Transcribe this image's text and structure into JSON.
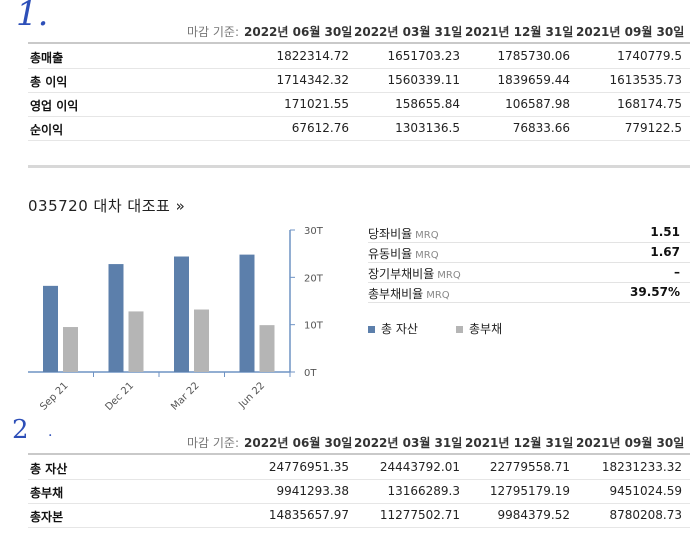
{
  "annotations": {
    "mark1": "1.",
    "mark2": "2",
    "mark2_dot": "."
  },
  "income": {
    "header_label": "마감 기준:",
    "columns": [
      "2022년 06월 30일",
      "2022년 03월 31일",
      "2021년 12월 31일",
      "2021년 09월 30일"
    ],
    "rows": [
      {
        "name": "총매출",
        "values": [
          "1822314.72",
          "1651703.23",
          "1785730.06",
          "1740779.5"
        ]
      },
      {
        "name": "총 이익",
        "values": [
          "1714342.32",
          "1560339.11",
          "1839659.44",
          "1613535.73"
        ]
      },
      {
        "name": "영업 이익",
        "values": [
          "171021.55",
          "158655.84",
          "106587.98",
          "168174.75"
        ]
      },
      {
        "name": "순이익",
        "values": [
          "67612.76",
          "1303136.5",
          "76833.66",
          "779122.5"
        ]
      }
    ]
  },
  "balance_title": "035720 대차 대조표 »",
  "ratios": [
    {
      "label": "당좌비율",
      "tag": "MRQ",
      "value": "1.51"
    },
    {
      "label": "유동비율",
      "tag": "MRQ",
      "value": "1.67"
    },
    {
      "label": "장기부채비율",
      "tag": "MRQ",
      "value": "–"
    },
    {
      "label": "총부채비율",
      "tag": "MRQ",
      "value": "39.57%"
    }
  ],
  "legend": {
    "assets": "총 자산",
    "liabilities": "총부채"
  },
  "colors": {
    "assets": "#5c7fab",
    "liabilities": "#b5b5b5",
    "axis": "#6f93c4"
  },
  "chart_data": {
    "type": "bar",
    "categories": [
      "Sep 21",
      "Dec 21",
      "Mar 22",
      "Jun 22"
    ],
    "series": [
      {
        "name": "총 자산",
        "values": [
          18.2,
          22.8,
          24.4,
          24.8
        ]
      },
      {
        "name": "총부채",
        "values": [
          9.5,
          12.8,
          13.2,
          9.9
        ]
      }
    ],
    "ylim": [
      0,
      30
    ],
    "yticks": [
      "0T",
      "10T",
      "20T",
      "30T"
    ],
    "legend": "bottom-right",
    "grid": false
  },
  "balance": {
    "header_label": "마감 기준:",
    "columns": [
      "2022년 06월 30일",
      "2022년 03월 31일",
      "2021년 12월 31일",
      "2021년 09월 30일"
    ],
    "rows": [
      {
        "name": "총 자산",
        "values": [
          "24776951.35",
          "24443792.01",
          "22779558.71",
          "18231233.32"
        ]
      },
      {
        "name": "총부채",
        "values": [
          "9941293.38",
          "13166289.3",
          "12795179.19",
          "9451024.59"
        ]
      },
      {
        "name": "총자본",
        "values": [
          "14835657.97",
          "11277502.71",
          "9984379.52",
          "8780208.73"
        ]
      }
    ]
  }
}
